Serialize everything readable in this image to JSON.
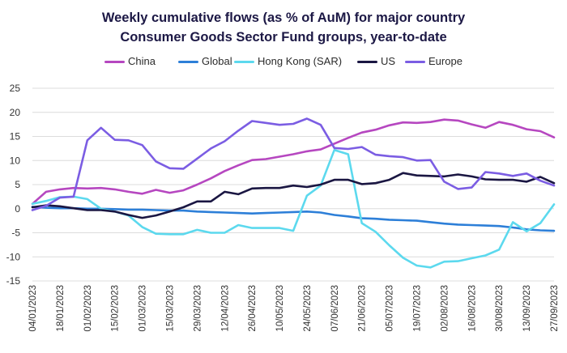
{
  "title_line1": "Weekly cumulative flows (as % of AuM) for major country",
  "title_line2": "Consumer Goods Sector Fund groups, year-to-date",
  "chart_data": {
    "type": "line",
    "title": "Weekly cumulative flows (as % of AuM) for major country Consumer Goods Sector Fund groups, year-to-date",
    "xlabel": "",
    "ylabel": "",
    "ylim": [
      -15,
      25
    ],
    "yticks": [
      25,
      20,
      15,
      10,
      5,
      0,
      -5,
      -10,
      -15
    ],
    "grid": "horizontal",
    "legend_position": "top",
    "x": [
      "04/01/2023",
      "11/01/2023",
      "18/01/2023",
      "25/01/2023",
      "01/02/2023",
      "08/02/2023",
      "15/02/2023",
      "22/02/2023",
      "01/03/2023",
      "08/03/2023",
      "15/03/2023",
      "22/03/2023",
      "29/03/2023",
      "05/04/2023",
      "12/04/2023",
      "19/04/2023",
      "26/04/2023",
      "03/05/2023",
      "10/05/2023",
      "17/05/2023",
      "24/05/2023",
      "31/05/2023",
      "07/06/2023",
      "14/06/2023",
      "21/06/2023",
      "28/06/2023",
      "05/07/2023",
      "12/07/2023",
      "19/07/2023",
      "26/07/2023",
      "02/08/2023",
      "09/08/2023",
      "16/08/2023",
      "23/08/2023",
      "30/08/2023",
      "06/09/2023",
      "13/09/2023",
      "20/09/2023",
      "27/09/2023"
    ],
    "x_tick_labels": [
      "04/01/2023",
      "18/01/2023",
      "01/02/2023",
      "15/02/2023",
      "01/03/2023",
      "15/03/2023",
      "29/03/2023",
      "12/04/2023",
      "26/04/2023",
      "10/05/2023",
      "24/05/2023",
      "07/06/2023",
      "21/06/2023",
      "05/07/2023",
      "19/07/2023",
      "02/08/2023",
      "16/08/2023",
      "30/08/2023",
      "13/09/2023",
      "27/09/2023"
    ],
    "series": [
      {
        "name": "China",
        "color": "#b647c0",
        "values": [
          1.0,
          3.5,
          4.0,
          4.3,
          4.2,
          4.3,
          4.0,
          3.5,
          3.1,
          3.9,
          3.3,
          3.8,
          5.0,
          6.3,
          7.8,
          9.0,
          10.1,
          10.3,
          10.8,
          11.3,
          11.9,
          12.3,
          13.5,
          14.7,
          15.8,
          16.4,
          17.3,
          17.9,
          17.8,
          18.0,
          18.5,
          18.3,
          17.5,
          16.8,
          18.0,
          17.4,
          16.5,
          16.1,
          14.8
        ]
      },
      {
        "name": "Global",
        "color": "#2d7fd8",
        "values": [
          0.4,
          0.2,
          0.1,
          0.1,
          0.0,
          0.0,
          -0.1,
          -0.2,
          -0.2,
          -0.3,
          -0.4,
          -0.4,
          -0.6,
          -0.7,
          -0.8,
          -0.9,
          -1.0,
          -0.9,
          -0.8,
          -0.7,
          -0.6,
          -0.8,
          -1.3,
          -1.6,
          -2.0,
          -2.1,
          -2.3,
          -2.4,
          -2.5,
          -2.8,
          -3.1,
          -3.3,
          -3.4,
          -3.5,
          -3.6,
          -3.9,
          -4.3,
          -4.5,
          -4.6
        ]
      },
      {
        "name": "Hong Kong (SAR)",
        "color": "#5cd9ee",
        "values": [
          1.0,
          1.6,
          2.4,
          2.5,
          2.0,
          0.0,
          -0.6,
          -1.4,
          -3.8,
          -5.2,
          -5.3,
          -5.3,
          -4.4,
          -5.0,
          -5.0,
          -3.4,
          -4.0,
          -4.0,
          -4.0,
          -4.6,
          2.7,
          4.8,
          12.2,
          11.3,
          -3.0,
          -4.8,
          -7.6,
          -10.2,
          -11.8,
          -12.2,
          -11.0,
          -10.9,
          -10.3,
          -9.7,
          -8.5,
          -2.8,
          -4.7,
          -3.0,
          0.9
        ]
      },
      {
        "name": "US",
        "color": "#1a1642",
        "values": [
          0.3,
          0.7,
          0.5,
          0.1,
          -0.3,
          -0.3,
          -0.6,
          -1.3,
          -1.9,
          -1.4,
          -0.6,
          0.3,
          1.5,
          1.5,
          3.5,
          3.0,
          4.2,
          4.3,
          4.3,
          4.8,
          4.5,
          5.0,
          6.0,
          6.0,
          5.1,
          5.3,
          6.0,
          7.4,
          6.9,
          6.8,
          6.7,
          7.1,
          6.7,
          6.1,
          6.0,
          6.0,
          5.6,
          6.6,
          5.3
        ]
      },
      {
        "name": "Europe",
        "color": "#7b5de3",
        "values": [
          -0.3,
          0.6,
          2.3,
          2.5,
          14.2,
          16.8,
          14.3,
          14.2,
          13.2,
          9.8,
          8.4,
          8.3,
          10.4,
          12.5,
          14.0,
          16.2,
          18.2,
          17.8,
          17.4,
          17.6,
          18.7,
          17.4,
          12.6,
          12.4,
          12.8,
          11.2,
          10.9,
          10.7,
          10.0,
          10.1,
          5.6,
          4.1,
          4.4,
          7.6,
          7.3,
          6.8,
          7.3,
          5.8,
          4.8
        ]
      }
    ]
  }
}
